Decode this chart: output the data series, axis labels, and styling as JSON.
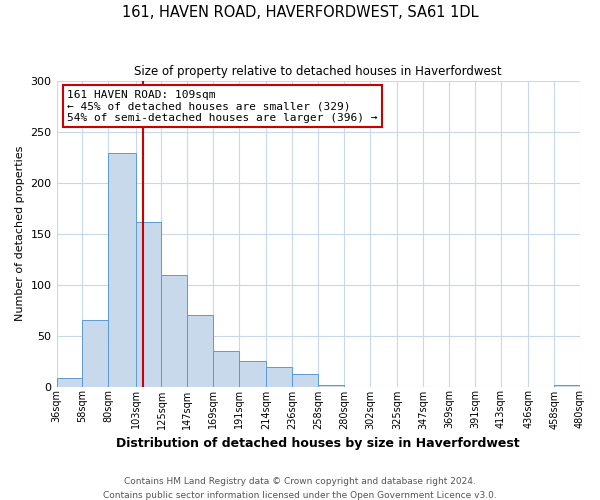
{
  "title": "161, HAVEN ROAD, HAVERFORDWEST, SA61 1DL",
  "subtitle": "Size of property relative to detached houses in Haverfordwest",
  "xlabel": "Distribution of detached houses by size in Haverfordwest",
  "ylabel": "Number of detached properties",
  "bar_edges": [
    36,
    58,
    80,
    103,
    125,
    147,
    169,
    191,
    214,
    236,
    258,
    280,
    302,
    325,
    347,
    369,
    391,
    413,
    436,
    458,
    480
  ],
  "bar_heights": [
    8,
    65,
    229,
    161,
    109,
    70,
    35,
    25,
    19,
    12,
    1,
    0,
    0,
    0,
    0,
    0,
    0,
    0,
    0,
    1
  ],
  "bar_color": "#c8d9eb",
  "bar_edgecolor": "#5b9bd5",
  "vline_x": 109,
  "vline_color": "#cc0000",
  "annotation_box_title": "161 HAVEN ROAD: 109sqm",
  "annotation_line1": "← 45% of detached houses are smaller (329)",
  "annotation_line2": "54% of semi-detached houses are larger (396) →",
  "annotation_box_edgecolor": "#cc0000",
  "ylim": [
    0,
    300
  ],
  "yticks": [
    0,
    50,
    100,
    150,
    200,
    250,
    300
  ],
  "tick_labels": [
    "36sqm",
    "58sqm",
    "80sqm",
    "103sqm",
    "125sqm",
    "147sqm",
    "169sqm",
    "191sqm",
    "214sqm",
    "236sqm",
    "258sqm",
    "280sqm",
    "302sqm",
    "325sqm",
    "347sqm",
    "369sqm",
    "391sqm",
    "413sqm",
    "436sqm",
    "458sqm",
    "480sqm"
  ],
  "footer_line1": "Contains HM Land Registry data © Crown copyright and database right 2024.",
  "footer_line2": "Contains public sector information licensed under the Open Government Licence v3.0.",
  "background_color": "#ffffff",
  "grid_color": "#c8d8ea"
}
